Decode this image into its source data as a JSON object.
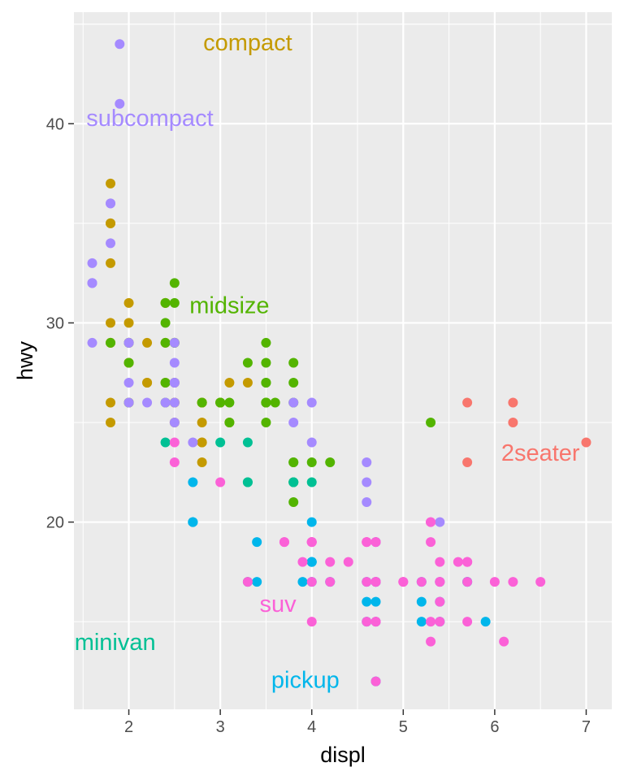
{
  "chart_data": {
    "type": "scatter",
    "xlabel": "displ",
    "ylabel": "hwy",
    "xlim": [
      1.4,
      7.28
    ],
    "ylim": [
      10.6,
      45.6
    ],
    "x_ticks": [
      2,
      3,
      4,
      5,
      6,
      7
    ],
    "y_ticks": [
      20,
      30,
      40
    ],
    "grid": true,
    "legend": "none",
    "background": "#ebebeb",
    "series": [
      {
        "name": "2seater",
        "color": "#f8766d",
        "points": [
          [
            5.7,
            26
          ],
          [
            5.7,
            23
          ],
          [
            6.2,
            26
          ],
          [
            6.2,
            25
          ],
          [
            7.0,
            24
          ]
        ]
      },
      {
        "name": "compact",
        "color": "#c49a00",
        "points": [
          [
            1.8,
            29
          ],
          [
            1.8,
            29
          ],
          [
            2.0,
            31
          ],
          [
            2.0,
            30
          ],
          [
            2.8,
            26
          ],
          [
            2.8,
            26
          ],
          [
            3.1,
            27
          ],
          [
            1.8,
            26
          ],
          [
            1.8,
            25
          ],
          [
            2.0,
            28
          ],
          [
            2.0,
            28
          ],
          [
            2.8,
            26
          ],
          [
            2.8,
            25
          ],
          [
            3.1,
            25
          ],
          [
            2.5,
            29
          ],
          [
            2.2,
            27
          ],
          [
            2.5,
            27
          ],
          [
            2.4,
            31
          ],
          [
            2.4,
            27
          ],
          [
            2.4,
            29
          ],
          [
            3.0,
            26
          ],
          [
            3.3,
            27
          ],
          [
            1.8,
            33
          ],
          [
            1.8,
            35
          ],
          [
            1.8,
            37
          ],
          [
            1.8,
            35
          ],
          [
            2.0,
            29
          ],
          [
            2.0,
            26
          ],
          [
            2.0,
            29
          ],
          [
            2.2,
            29
          ],
          [
            2.5,
            26
          ],
          [
            2.5,
            26
          ],
          [
            2.8,
            24
          ],
          [
            2.8,
            23
          ],
          [
            2.4,
            31
          ],
          [
            2.2,
            27
          ],
          [
            2.5,
            25
          ],
          [
            3.0,
            26
          ],
          [
            2.8,
            24
          ],
          [
            1.8,
            30
          ],
          [
            2.5,
            27
          ],
          [
            3.0,
            26
          ]
        ]
      },
      {
        "name": "midsize",
        "color": "#53b400",
        "points": [
          [
            2.8,
            26
          ],
          [
            3.1,
            26
          ],
          [
            4.2,
            23
          ],
          [
            3.8,
            23
          ],
          [
            3.8,
            27
          ],
          [
            3.8,
            26
          ],
          [
            5.3,
            25
          ],
          [
            2.4,
            26
          ],
          [
            2.4,
            27
          ],
          [
            3.3,
            28
          ],
          [
            3.5,
            26
          ],
          [
            3.5,
            28
          ],
          [
            3.6,
            26
          ],
          [
            2.4,
            30
          ],
          [
            2.5,
            32
          ],
          [
            2.5,
            31
          ],
          [
            3.5,
            29
          ],
          [
            3.5,
            26
          ],
          [
            3.5,
            25
          ],
          [
            3.1,
            25
          ],
          [
            3.8,
            23
          ],
          [
            3.8,
            22
          ],
          [
            4.0,
            23
          ],
          [
            2.5,
            29
          ],
          [
            2.5,
            29
          ],
          [
            3.0,
            26
          ],
          [
            3.5,
            27
          ],
          [
            2.0,
            26
          ],
          [
            2.0,
            28
          ],
          [
            2.0,
            29
          ],
          [
            1.8,
            29
          ],
          [
            3.8,
            28
          ],
          [
            3.5,
            27
          ],
          [
            3.0,
            26
          ],
          [
            2.4,
            31
          ],
          [
            2.4,
            29
          ],
          [
            3.5,
            26
          ],
          [
            3.8,
            21
          ],
          [
            2.0,
            29
          ],
          [
            3.5,
            26
          ]
        ]
      },
      {
        "name": "minivan",
        "color": "#00c094",
        "points": [
          [
            2.4,
            24
          ],
          [
            3.0,
            24
          ],
          [
            3.3,
            22
          ],
          [
            3.3,
            24
          ],
          [
            3.3,
            22
          ],
          [
            3.8,
            22
          ],
          [
            3.8,
            22
          ],
          [
            4.0,
            22
          ],
          [
            3.3,
            17
          ]
        ]
      },
      {
        "name": "pickup",
        "color": "#00b6eb",
        "points": [
          [
            2.7,
            22
          ],
          [
            2.7,
            20
          ],
          [
            3.4,
            19
          ],
          [
            3.4,
            17
          ],
          [
            3.9,
            17
          ],
          [
            4.7,
            12
          ],
          [
            4.7,
            16
          ],
          [
            4.7,
            17
          ],
          [
            4.7,
            19
          ],
          [
            5.2,
            17
          ],
          [
            5.2,
            16
          ],
          [
            5.7,
            17
          ],
          [
            5.9,
            15
          ],
          [
            4.7,
            17
          ],
          [
            4.7,
            15
          ],
          [
            4.7,
            17
          ],
          [
            5.2,
            15
          ],
          [
            5.7,
            17
          ],
          [
            4.2,
            17
          ],
          [
            4.6,
            16
          ],
          [
            4.6,
            17
          ],
          [
            5.4,
            15
          ],
          [
            5.4,
            17
          ],
          [
            4.0,
            20
          ],
          [
            4.0,
            18
          ],
          [
            4.0,
            18
          ],
          [
            2.7,
            20
          ],
          [
            2.7,
            20
          ],
          [
            4.0,
            18
          ],
          [
            4.0,
            17
          ],
          [
            5.4,
            16
          ],
          [
            4.6,
            15
          ]
        ]
      },
      {
        "name": "subcompact",
        "color": "#a58aff",
        "points": [
          [
            3.8,
            26
          ],
          [
            3.8,
            25
          ],
          [
            4.0,
            26
          ],
          [
            4.0,
            24
          ],
          [
            4.6,
            21
          ],
          [
            4.6,
            22
          ],
          [
            4.6,
            23
          ],
          [
            5.4,
            20
          ],
          [
            1.6,
            33
          ],
          [
            1.6,
            32
          ],
          [
            1.6,
            32
          ],
          [
            1.6,
            29
          ],
          [
            1.6,
            32
          ],
          [
            1.8,
            34
          ],
          [
            1.8,
            36
          ],
          [
            1.8,
            36
          ],
          [
            2.0,
            29
          ],
          [
            2.4,
            26
          ],
          [
            2.5,
            27
          ],
          [
            2.5,
            26
          ],
          [
            2.5,
            29
          ],
          [
            2.5,
            28
          ],
          [
            2.2,
            26
          ],
          [
            2.5,
            27
          ],
          [
            1.9,
            44
          ],
          [
            1.9,
            41
          ],
          [
            2.0,
            29
          ],
          [
            2.0,
            26
          ],
          [
            2.5,
            25
          ],
          [
            2.7,
            24
          ],
          [
            2.0,
            27
          ]
        ]
      },
      {
        "name": "suv",
        "color": "#fb61d7",
        "points": [
          [
            5.3,
            20
          ],
          [
            5.3,
            15
          ],
          [
            5.3,
            20
          ],
          [
            5.7,
            17
          ],
          [
            6.0,
            17
          ],
          [
            5.7,
            15
          ],
          [
            5.7,
            18
          ],
          [
            6.2,
            17
          ],
          [
            6.5,
            17
          ],
          [
            3.7,
            19
          ],
          [
            3.9,
            18
          ],
          [
            4.7,
            17
          ],
          [
            4.7,
            19
          ],
          [
            4.7,
            19
          ],
          [
            5.2,
            17
          ],
          [
            5.7,
            18
          ],
          [
            4.0,
            19
          ],
          [
            4.0,
            19
          ],
          [
            4.6,
            19
          ],
          [
            5.0,
            17
          ],
          [
            4.2,
            17
          ],
          [
            4.4,
            18
          ],
          [
            4.6,
            19
          ],
          [
            5.4,
            18
          ],
          [
            5.4,
            17
          ],
          [
            5.4,
            17
          ],
          [
            4.0,
            19
          ],
          [
            4.0,
            15
          ],
          [
            4.6,
            17
          ],
          [
            5.0,
            17
          ],
          [
            2.5,
            23
          ],
          [
            2.5,
            24
          ],
          [
            3.0,
            22
          ],
          [
            3.3,
            17
          ],
          [
            4.7,
            12
          ],
          [
            4.7,
            17
          ],
          [
            5.7,
            18
          ],
          [
            6.1,
            14
          ],
          [
            5.3,
            14
          ],
          [
            5.6,
            18
          ],
          [
            4.0,
            17
          ],
          [
            4.0,
            19
          ],
          [
            4.7,
            17
          ],
          [
            4.7,
            15
          ],
          [
            5.4,
            16
          ],
          [
            3.7,
            19
          ],
          [
            4.6,
            15
          ],
          [
            4.6,
            19
          ],
          [
            4.7,
            15
          ],
          [
            5.3,
            19
          ],
          [
            5.4,
            15
          ],
          [
            4.2,
            18
          ]
        ]
      }
    ],
    "annotations": [
      {
        "text": "compact",
        "x": 3.3,
        "y": 44.0,
        "color": "#c49a00"
      },
      {
        "text": "subcompact",
        "x": 2.23,
        "y": 40.2,
        "color": "#a58aff"
      },
      {
        "text": "midsize",
        "x": 3.1,
        "y": 30.8,
        "color": "#53b400"
      },
      {
        "text": "2seater",
        "x": 6.5,
        "y": 23.4,
        "color": "#f8766d"
      },
      {
        "text": "suv",
        "x": 3.63,
        "y": 15.8,
        "color": "#fb61d7"
      },
      {
        "text": "minivan",
        "x": 1.85,
        "y": 13.9,
        "color": "#00c094"
      },
      {
        "text": "pickup",
        "x": 3.93,
        "y": 12.0,
        "color": "#00b6eb"
      }
    ]
  }
}
